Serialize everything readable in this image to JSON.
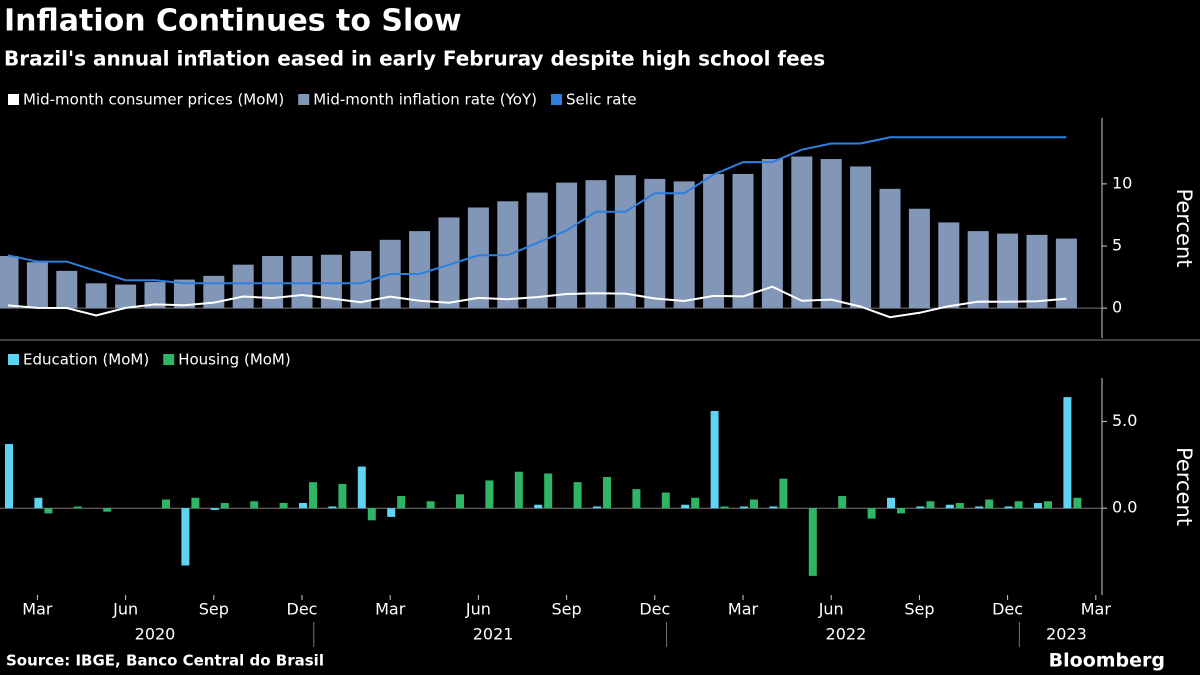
{
  "title": "Inflation Continues to Slow",
  "subtitle": "Brazil's annual inflation eased in early Februray despite high school fees",
  "source": "Source: IBGE, Banco Central do Brasil",
  "brand": "Bloomberg",
  "x": [
    "2020-02",
    "2020-03",
    "2020-04",
    "2020-05",
    "2020-06",
    "2020-07",
    "2020-08",
    "2020-09",
    "2020-10",
    "2020-11",
    "2020-12",
    "2021-01",
    "2021-02",
    "2021-03",
    "2021-04",
    "2021-05",
    "2021-06",
    "2021-07",
    "2021-08",
    "2021-09",
    "2021-10",
    "2021-11",
    "2021-12",
    "2022-01",
    "2022-02",
    "2022-03",
    "2022-04",
    "2022-05",
    "2022-06",
    "2022-07",
    "2022-08",
    "2022-09",
    "2022-10",
    "2022-11",
    "2022-12",
    "2023-01",
    "2023-02"
  ],
  "xticks": [
    {
      "value": "2020-03",
      "label": "Mar"
    },
    {
      "value": "2020-06",
      "label": "Jun"
    },
    {
      "value": "2020-09",
      "label": "Sep"
    },
    {
      "value": "2020-12",
      "label": "Dec"
    },
    {
      "value": "2021-03",
      "label": "Mar"
    },
    {
      "value": "2021-06",
      "label": "Jun"
    },
    {
      "value": "2021-09",
      "label": "Sep"
    },
    {
      "value": "2021-12",
      "label": "Dec"
    },
    {
      "value": "2022-03",
      "label": "Mar"
    },
    {
      "value": "2022-06",
      "label": "Jun"
    },
    {
      "value": "2022-09",
      "label": "Sep"
    },
    {
      "value": "2022-12",
      "label": "Dec"
    },
    {
      "value": "2023-03",
      "label": "Mar"
    }
  ],
  "xyears": [
    "2020",
    "2021",
    "2022",
    "2023"
  ],
  "chart_data": [
    {
      "type": "combo",
      "ylabel": "Percent",
      "ylim": [
        -2.4,
        15.3
      ],
      "yticks": [
        0,
        5,
        10
      ],
      "grid": false,
      "series": [
        {
          "name": "Mid-month consumer prices (MoM)",
          "type": "line",
          "color": "#ffffff",
          "values": [
            0.22,
            0.02,
            0.01,
            -0.59,
            0.02,
            0.3,
            0.23,
            0.45,
            0.94,
            0.81,
            1.06,
            0.78,
            0.48,
            0.93,
            0.6,
            0.44,
            0.83,
            0.72,
            0.89,
            1.14,
            1.2,
            1.17,
            0.78,
            0.58,
            0.99,
            0.95,
            1.73,
            0.59,
            0.69,
            0.13,
            -0.73,
            -0.37,
            0.16,
            0.53,
            0.52,
            0.55,
            0.76
          ]
        },
        {
          "name": "Mid-month inflation rate (YoY)",
          "type": "bar",
          "color": "#8297b8",
          "values": [
            4.2,
            3.7,
            3.0,
            2.0,
            1.9,
            2.1,
            2.3,
            2.6,
            3.5,
            4.2,
            4.2,
            4.3,
            4.6,
            5.5,
            6.2,
            7.3,
            8.1,
            8.6,
            9.3,
            10.1,
            10.3,
            10.7,
            10.4,
            10.2,
            10.8,
            10.8,
            12.0,
            12.2,
            12.0,
            11.4,
            9.6,
            8.0,
            6.9,
            6.2,
            6.0,
            5.9,
            5.6
          ]
        },
        {
          "name": "Selic rate",
          "type": "line",
          "color": "#2f7fe0",
          "values": [
            4.25,
            3.75,
            3.75,
            3.0,
            2.25,
            2.25,
            2.0,
            2.0,
            2.0,
            2.0,
            2.0,
            2.0,
            2.0,
            2.75,
            2.75,
            3.5,
            4.25,
            4.25,
            5.25,
            6.25,
            7.75,
            7.75,
            9.25,
            9.25,
            10.75,
            11.75,
            11.75,
            12.75,
            13.25,
            13.25,
            13.75,
            13.75,
            13.75,
            13.75,
            13.75,
            13.75,
            13.75
          ]
        }
      ]
    },
    {
      "type": "bar",
      "ylabel": "Percent",
      "ylim": [
        -5,
        7.5
      ],
      "yticks": [
        {
          "value": 0,
          "label": "0.0"
        },
        {
          "value": 5,
          "label": "5.0"
        }
      ],
      "grid": false,
      "series": [
        {
          "name": "Education (MoM)",
          "type": "bar",
          "color": "#5ed4f2",
          "values": [
            3.7,
            0.6,
            0.0,
            0.0,
            0.0,
            0.0,
            -3.3,
            -0.1,
            0.0,
            0.0,
            0.3,
            0.1,
            2.4,
            -0.5,
            0.0,
            0.0,
            0.0,
            0.0,
            0.2,
            0.0,
            0.1,
            0.0,
            0.0,
            0.2,
            5.6,
            0.1,
            0.1,
            0.0,
            0.0,
            0.0,
            0.6,
            0.1,
            0.2,
            0.1,
            0.1,
            0.3,
            6.4
          ]
        },
        {
          "name": "Housing (MoM)",
          "type": "bar",
          "color": "#2fb566",
          "values": [
            0.0,
            -0.3,
            0.1,
            -0.2,
            0.0,
            0.5,
            0.6,
            0.3,
            0.4,
            0.3,
            1.5,
            1.4,
            -0.7,
            0.7,
            0.4,
            0.8,
            1.6,
            2.1,
            2.0,
            1.5,
            1.8,
            1.1,
            0.9,
            0.6,
            0.1,
            0.5,
            1.7,
            -3.9,
            0.7,
            -0.6,
            -0.3,
            0.4,
            0.3,
            0.5,
            0.4,
            0.4,
            0.6
          ]
        }
      ]
    }
  ]
}
